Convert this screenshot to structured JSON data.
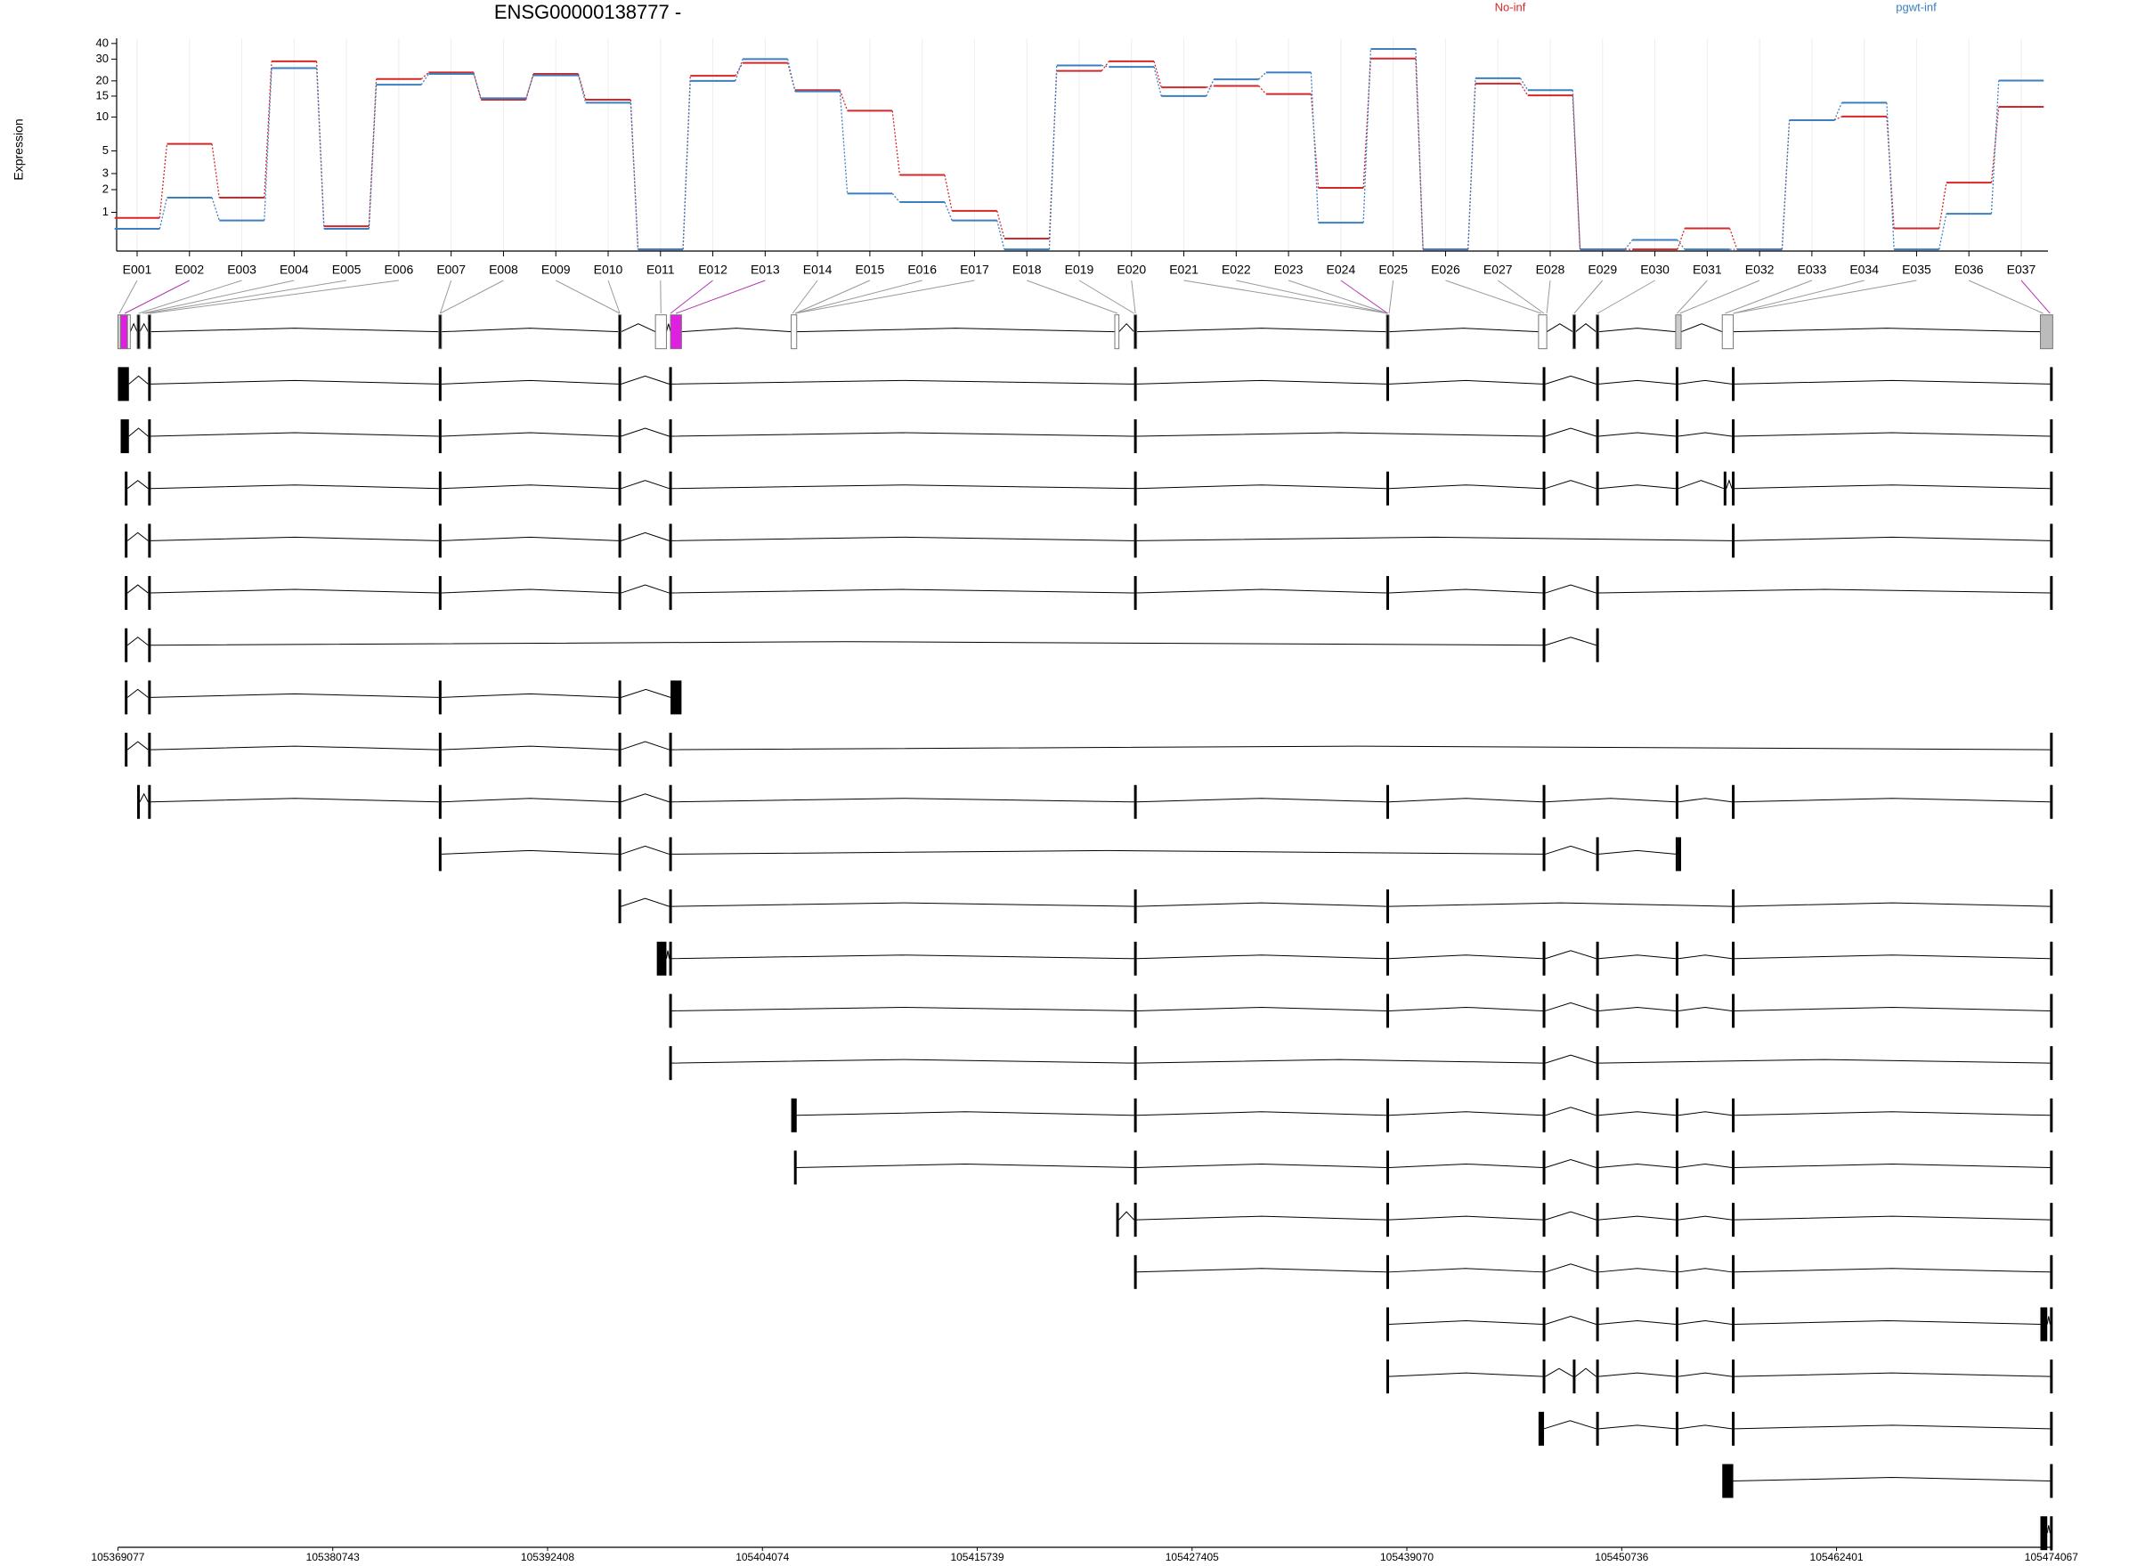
{
  "chart_data": [
    {
      "type": "line",
      "title": "ENSG00000138777 -",
      "ylabel": "Expression",
      "y_scale": "log1p",
      "grid": true,
      "categories": [
        "E001",
        "E002",
        "E003",
        "E004",
        "E005",
        "E006",
        "E007",
        "E008",
        "E009",
        "E010",
        "E011",
        "E012",
        "E013",
        "E014",
        "E015",
        "E016",
        "E017",
        "E018",
        "E019",
        "E020",
        "E021",
        "E022",
        "E023",
        "E024",
        "E025",
        "E026",
        "E027",
        "E028",
        "E029",
        "E030",
        "E031",
        "E032",
        "E033",
        "E034",
        "E035",
        "E036",
        "E037"
      ],
      "series": [
        {
          "name": "No-inf",
          "color": "#d62728",
          "values": [
            0.81,
            5.8,
            1.6,
            28.8,
            0.56,
            20.7,
            23.4,
            14,
            22.8,
            14,
            0.03,
            22,
            28,
            16.8,
            11.3,
            2.9,
            1.05,
            0.25,
            24.1,
            28.8,
            17.7,
            18.2,
            15.6,
            2.1,
            30.3,
            0.03,
            19,
            15.2,
            0.03,
            0.03,
            0.5,
            0.03,
            9.4,
            10.1,
            0.5,
            2.4,
            12.2
          ]
        },
        {
          "name": "pgwt-inf",
          "color": "#3b7fc0",
          "values": [
            0.49,
            1.6,
            0.73,
            25.4,
            0.49,
            18.6,
            22.8,
            14.4,
            22.2,
            13.2,
            0.03,
            20,
            30,
            16.4,
            1.8,
            1.4,
            0.73,
            0.03,
            26.7,
            26,
            15,
            20.6,
            23.4,
            0.66,
            36.2,
            0.03,
            21,
            16.8,
            0.03,
            0.22,
            0.03,
            0.03,
            9.4,
            13.2,
            0.03,
            0.95,
            20.1
          ]
        }
      ],
      "ylim": [
        0,
        44
      ],
      "yticks": [
        1,
        2,
        3,
        5,
        10,
        15,
        20,
        30,
        40
      ]
    },
    {
      "type": "track",
      "xlim": [
        105369077,
        105474067
      ],
      "xticks": [
        105369077,
        105380743,
        105392408,
        105404074,
        105415739,
        105427405,
        105439070,
        105450736,
        105462401,
        105474067
      ]
    }
  ]
}
